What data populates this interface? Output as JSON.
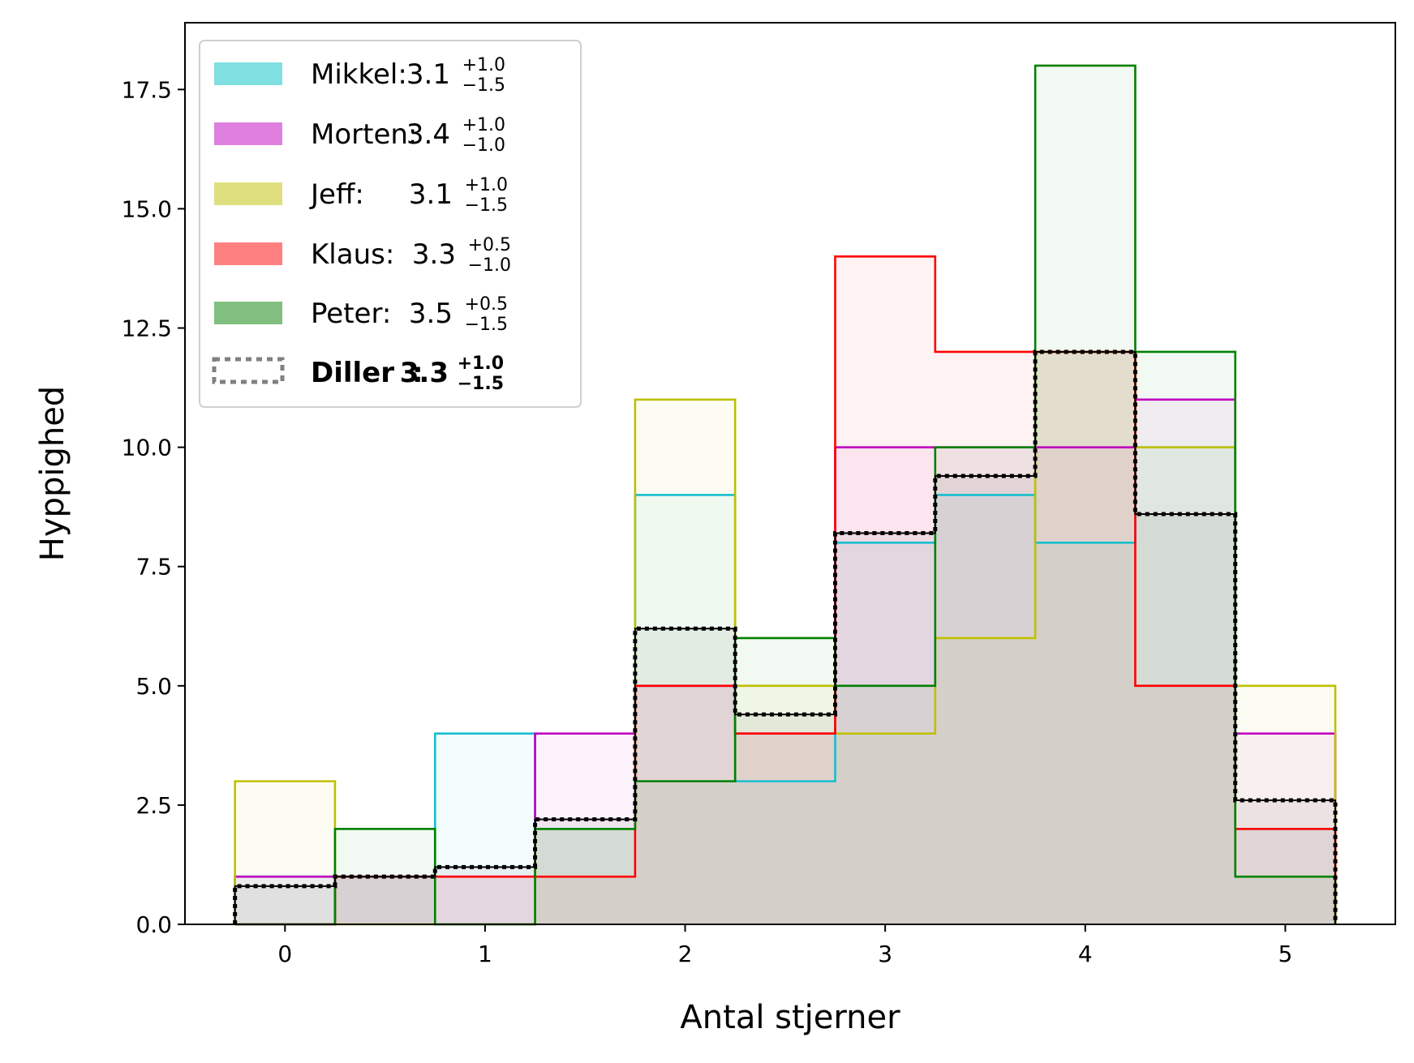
{
  "chart_data": {
    "type": "step-histogram",
    "xlabel": "Antal stjerner",
    "ylabel": "Hyppighed",
    "xlim": [
      -0.5,
      5.55
    ],
    "ylim": [
      0,
      18.9
    ],
    "xticks": [
      0,
      1,
      2,
      3,
      4,
      5
    ],
    "yticks": [
      0.0,
      2.5,
      5.0,
      7.5,
      10.0,
      12.5,
      15.0,
      17.5
    ],
    "ytick_labels": [
      "0.0",
      "2.5",
      "5.0",
      "7.5",
      "10.0",
      "12.5",
      "15.0",
      "17.5"
    ],
    "bin_edges": [
      -0.25,
      0.25,
      0.75,
      1.25,
      1.75,
      2.25,
      2.75,
      3.25,
      3.75,
      4.25,
      4.75,
      5.25
    ],
    "grid": false,
    "legend_position": "upper left",
    "series": [
      {
        "name": "Mikkel",
        "color": "#17becf",
        "mean": "3.1",
        "upper": "+1.0",
        "lower": "−1.5",
        "values": [
          1,
          1,
          4,
          2,
          9,
          3,
          8,
          9,
          8,
          10,
          2
        ]
      },
      {
        "name": "Morten",
        "color": "#bf00bf",
        "mean": "3.4",
        "upper": "+1.0",
        "lower": "−1.0",
        "values": [
          1,
          1,
          1,
          4,
          5,
          4,
          10,
          10,
          10,
          11,
          4
        ]
      },
      {
        "name": "Jeff",
        "color": "#bfbf00",
        "mean": "3.1",
        "upper": "+1.0",
        "lower": "−1.5",
        "values": [
          3,
          0,
          0,
          2,
          11,
          5,
          4,
          6,
          12,
          10,
          5
        ]
      },
      {
        "name": "Klaus",
        "color": "#ff0000",
        "mean": "3.3",
        "upper": "+0.5",
        "lower": "−1.0",
        "values": [
          0,
          1,
          1,
          1,
          5,
          4,
          14,
          12,
          12,
          5,
          2
        ]
      },
      {
        "name": "Peter",
        "color": "#008000",
        "mean": "3.5",
        "upper": "+0.5",
        "lower": "−1.5",
        "values": [
          0,
          2,
          0,
          2,
          3,
          6,
          5,
          10,
          18,
          12,
          1
        ]
      },
      {
        "name": "Diller",
        "color": "#000000",
        "mean": "3.3",
        "upper": "+1.0",
        "lower": "−1.5",
        "dotted": true,
        "values": [
          0.8,
          1.0,
          1.2,
          2.2,
          6.2,
          4.4,
          8.2,
          9.4,
          12.0,
          8.6,
          2.6
        ]
      }
    ],
    "legend": [
      {
        "label": "Mikkel:",
        "mean": "3.1",
        "upper": "+1.0",
        "lower": "−1.5",
        "swatch": "#80dfe0"
      },
      {
        "label": "Morten:",
        "mean": "3.4",
        "upper": "+1.0",
        "lower": "−1.0",
        "swatch": "#df80df"
      },
      {
        "label": "Jeff:",
        "mean": "3.1",
        "upper": "+1.0",
        "lower": "−1.5",
        "swatch": "#dfdf80"
      },
      {
        "label": "Klaus:",
        "mean": "3.3",
        "upper": "+0.5",
        "lower": "−1.0",
        "swatch": "#ff8080"
      },
      {
        "label": "Peter:",
        "mean": "3.5",
        "upper": "+0.5",
        "lower": "−1.5",
        "swatch": "#80bf80"
      },
      {
        "label": "Diller",
        "colon": ":",
        "mean": "3.3",
        "upper": "+1.0",
        "lower": "−1.5",
        "swatch": "dotted-grey"
      }
    ]
  }
}
